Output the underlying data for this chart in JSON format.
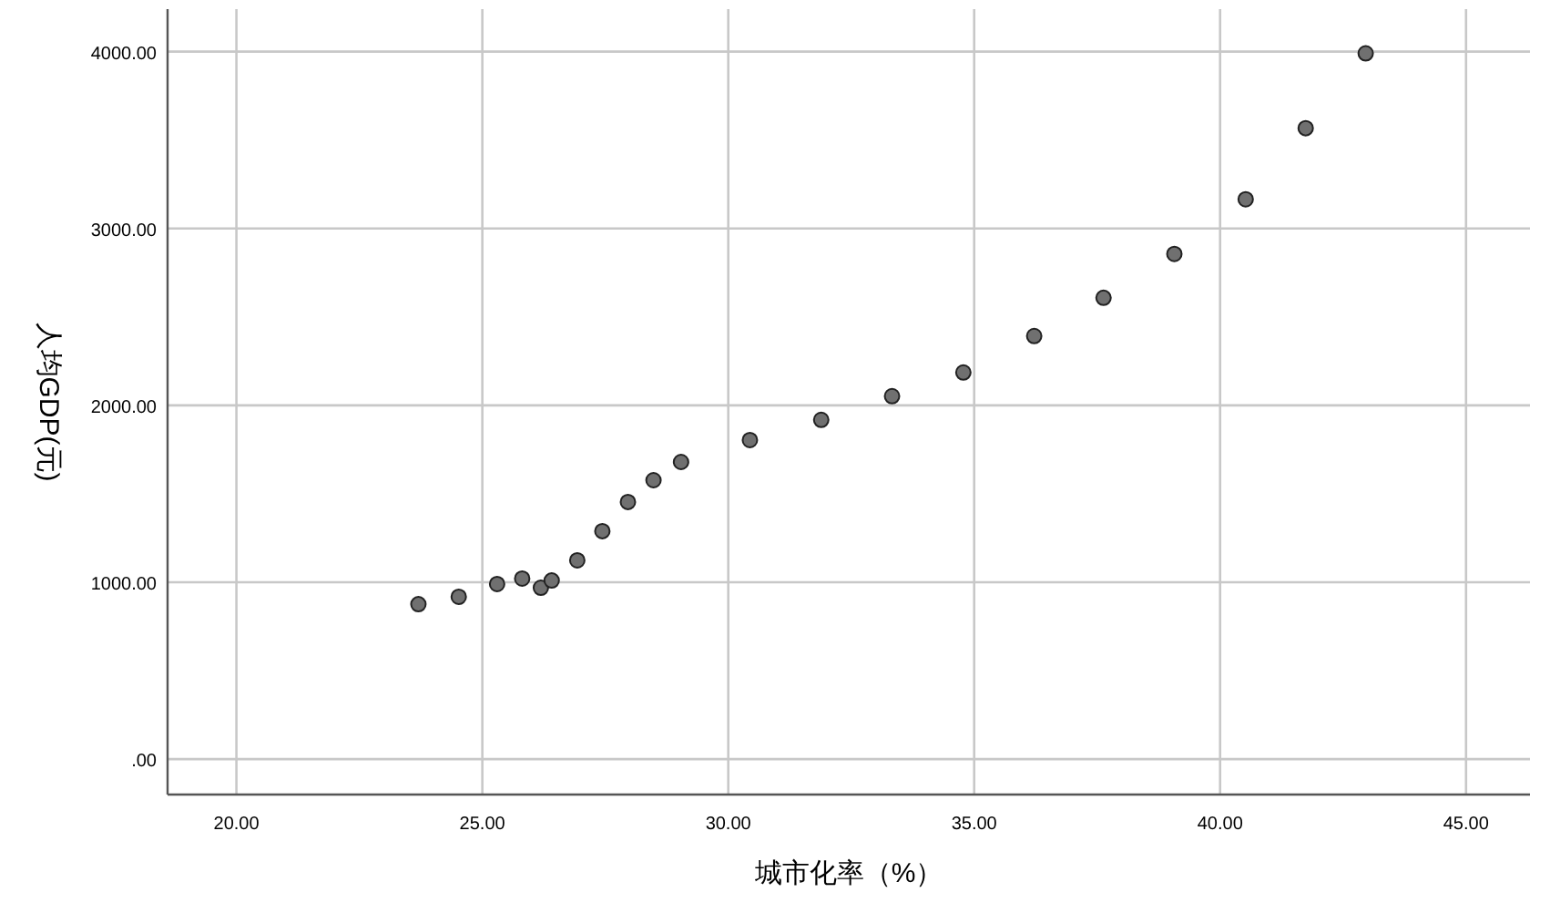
{
  "chart_data": {
    "type": "scatter",
    "xlabel": "城市化率（%）",
    "ylabel": "人均GDP(元)",
    "x": [
      23.7,
      24.52,
      25.3,
      25.81,
      26.19,
      26.41,
      26.93,
      27.44,
      27.96,
      28.48,
      29.04,
      30.44,
      31.89,
      33.33,
      34.78,
      36.22,
      37.63,
      39.07,
      40.52,
      41.74,
      42.96
    ],
    "values": [
      876,
      918,
      990,
      1021,
      969,
      1010,
      1124,
      1289,
      1454,
      1577,
      1680,
      1804,
      1918,
      2052,
      2186,
      2392,
      2608,
      2856,
      3165,
      3567,
      3990
    ],
    "color": "#707070",
    "marker": "circle",
    "grid": true,
    "xlim": [
      18.6,
      46.3
    ],
    "ylim": [
      -200,
      4240
    ],
    "xticks": [
      {
        "value": 20,
        "label": "20.00"
      },
      {
        "value": 25,
        "label": "25.00"
      },
      {
        "value": 30,
        "label": "30.00"
      },
      {
        "value": 35,
        "label": "35.00"
      },
      {
        "value": 40,
        "label": "40.00"
      },
      {
        "value": 45,
        "label": "45.00"
      }
    ],
    "yticks": [
      {
        "value": 0,
        "label": ".00"
      },
      {
        "value": 1000,
        "label": "1000.00"
      },
      {
        "value": 2000,
        "label": "2000.00"
      },
      {
        "value": 3000,
        "label": "3000.00"
      },
      {
        "value": 4000,
        "label": "4000.00"
      }
    ]
  }
}
